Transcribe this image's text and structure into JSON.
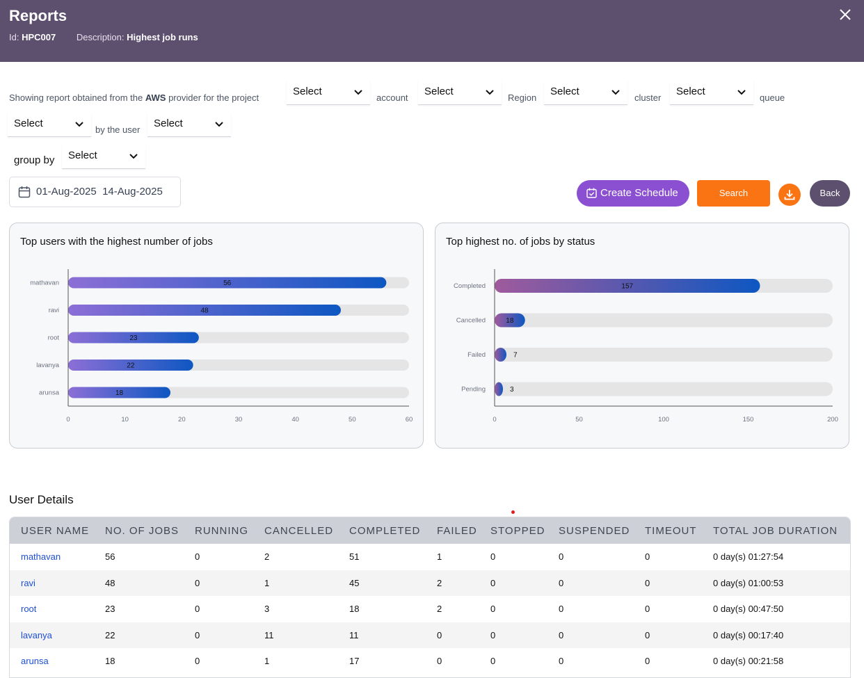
{
  "header": {
    "title": "Reports",
    "id_label": "Id:",
    "id_value": "HPC007",
    "desc_label": "Description:",
    "desc_value": "Highest job runs"
  },
  "filters": {
    "intro_prefix": "Showing report obtained from the ",
    "provider": "AWS",
    "intro_suffix": " provider for the project",
    "project_select": "Select",
    "account_label": "account",
    "account_select": "Select",
    "region_label": "Region",
    "region_select": "Select",
    "cluster_label": "cluster",
    "cluster_select": "Select",
    "queue_label": "queue",
    "queue_select": "Select",
    "user_label": "by the user",
    "user_select": "Select",
    "group_by_label": "group by",
    "group_by_select": "Select"
  },
  "date_range": {
    "start": "01-Aug-2025",
    "end": "14-Aug-2025"
  },
  "actions": {
    "create_schedule": "Create Schedule",
    "search": "Search",
    "back": "Back"
  },
  "colors": {
    "header_bg": "#5d4f6e",
    "accent_purple": "#8b4fd1",
    "accent_orange": "#fb7414",
    "bar_start_users": "#8c6fd6",
    "bar_start_status": "#a05a9c",
    "bar_end": "#0e57c2",
    "track": "#e5e5e5"
  },
  "chart_data": [
    {
      "type": "bar",
      "orientation": "horizontal",
      "title": "Top users with the highest number of jobs",
      "categories": [
        "mathavan",
        "ravi",
        "root",
        "lavanya",
        "arunsa"
      ],
      "values": [
        56,
        48,
        23,
        22,
        18
      ],
      "xlim": [
        0,
        60
      ],
      "xticks": [
        0,
        10,
        20,
        30,
        40,
        50,
        60
      ]
    },
    {
      "type": "bar",
      "orientation": "horizontal",
      "title": "Top highest no. of jobs by status",
      "categories": [
        "Completed",
        "Cancelled",
        "Failed",
        "Pending"
      ],
      "values": [
        157,
        18,
        7,
        3
      ],
      "xlim": [
        0,
        200
      ],
      "xticks": [
        0,
        50,
        100,
        150,
        200
      ]
    }
  ],
  "user_details": {
    "title": "User Details",
    "columns": [
      "USER NAME",
      "NO. OF JOBS",
      "RUNNING",
      "CANCELLED",
      "COMPLETED",
      "FAILED",
      "STOPPED",
      "SUSPENDED",
      "TIMEOUT",
      "TOTAL JOB DURATION"
    ],
    "rows": [
      [
        "mathavan",
        "56",
        "0",
        "2",
        "51",
        "1",
        "0",
        "0",
        "0",
        "0 day(s) 01:27:54"
      ],
      [
        "ravi",
        "48",
        "0",
        "1",
        "45",
        "2",
        "0",
        "0",
        "0",
        "0 day(s) 01:00:53"
      ],
      [
        "root",
        "23",
        "0",
        "3",
        "18",
        "2",
        "0",
        "0",
        "0",
        "0 day(s) 00:47:50"
      ],
      [
        "lavanya",
        "22",
        "0",
        "11",
        "11",
        "0",
        "0",
        "0",
        "0",
        "0 day(s) 00:17:40"
      ],
      [
        "arunsa",
        "18",
        "0",
        "1",
        "17",
        "0",
        "0",
        "0",
        "0",
        "0 day(s) 00:21:58"
      ]
    ]
  }
}
